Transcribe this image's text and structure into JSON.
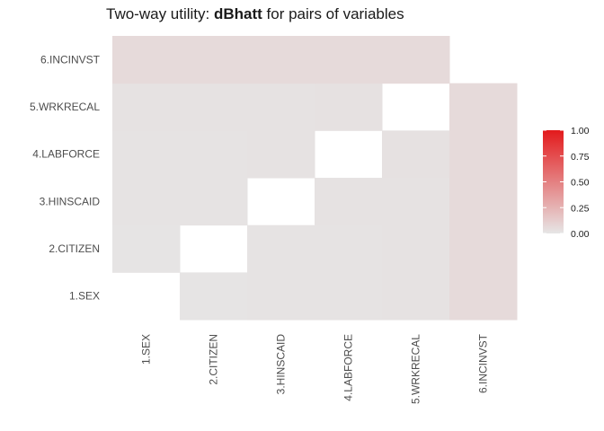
{
  "chart_data": {
    "type": "heatmap",
    "title_prefix": "Two-way utility: ",
    "title_metric": "dBhatt",
    "title_suffix": " for pairs of variables",
    "xlabel": "",
    "ylabel": "",
    "x_categories": [
      "1.SEX",
      "2.CITIZEN",
      "3.HINSCAID",
      "4.LABFORCE",
      "5.WRKRECAL",
      "6.INCINVST"
    ],
    "y_categories": [
      "1.SEX",
      "2.CITIZEN",
      "3.HINSCAID",
      "4.LABFORCE",
      "5.WRKRECAL",
      "6.INCINVST"
    ],
    "cells": [
      {
        "x": "2.CITIZEN",
        "y": "1.SEX",
        "value": 0.01
      },
      {
        "x": "3.HINSCAID",
        "y": "1.SEX",
        "value": 0.015
      },
      {
        "x": "4.LABFORCE",
        "y": "1.SEX",
        "value": 0.015
      },
      {
        "x": "5.WRKRECAL",
        "y": "1.SEX",
        "value": 0.02
      },
      {
        "x": "6.INCINVST",
        "y": "1.SEX",
        "value": 0.06
      },
      {
        "x": "1.SEX",
        "y": "2.CITIZEN",
        "value": 0.01
      },
      {
        "x": "3.HINSCAID",
        "y": "2.CITIZEN",
        "value": 0.015
      },
      {
        "x": "4.LABFORCE",
        "y": "2.CITIZEN",
        "value": 0.015
      },
      {
        "x": "5.WRKRECAL",
        "y": "2.CITIZEN",
        "value": 0.02
      },
      {
        "x": "6.INCINVST",
        "y": "2.CITIZEN",
        "value": 0.06
      },
      {
        "x": "1.SEX",
        "y": "3.HINSCAID",
        "value": 0.015
      },
      {
        "x": "2.CITIZEN",
        "y": "3.HINSCAID",
        "value": 0.015
      },
      {
        "x": "4.LABFORCE",
        "y": "3.HINSCAID",
        "value": 0.02
      },
      {
        "x": "5.WRKRECAL",
        "y": "3.HINSCAID",
        "value": 0.02
      },
      {
        "x": "6.INCINVST",
        "y": "3.HINSCAID",
        "value": 0.06
      },
      {
        "x": "1.SEX",
        "y": "4.LABFORCE",
        "value": 0.015
      },
      {
        "x": "2.CITIZEN",
        "y": "4.LABFORCE",
        "value": 0.015
      },
      {
        "x": "3.HINSCAID",
        "y": "4.LABFORCE",
        "value": 0.02
      },
      {
        "x": "5.WRKRECAL",
        "y": "4.LABFORCE",
        "value": 0.025
      },
      {
        "x": "6.INCINVST",
        "y": "4.LABFORCE",
        "value": 0.06
      },
      {
        "x": "1.SEX",
        "y": "5.WRKRECAL",
        "value": 0.02
      },
      {
        "x": "2.CITIZEN",
        "y": "5.WRKRECAL",
        "value": 0.02
      },
      {
        "x": "3.HINSCAID",
        "y": "5.WRKRECAL",
        "value": 0.02
      },
      {
        "x": "4.LABFORCE",
        "y": "5.WRKRECAL",
        "value": 0.025
      },
      {
        "x": "6.INCINVST",
        "y": "5.WRKRECAL",
        "value": 0.06
      },
      {
        "x": "1.SEX",
        "y": "6.INCINVST",
        "value": 0.06
      },
      {
        "x": "2.CITIZEN",
        "y": "6.INCINVST",
        "value": 0.06
      },
      {
        "x": "3.HINSCAID",
        "y": "6.INCINVST",
        "value": 0.06
      },
      {
        "x": "4.LABFORCE",
        "y": "6.INCINVST",
        "value": 0.06
      },
      {
        "x": "5.WRKRECAL",
        "y": "6.INCINVST",
        "value": 0.06
      }
    ],
    "color_scale": {
      "low_color": "#e6e6e6",
      "high_color": "#e31a1c",
      "missing_color": "#ffffff",
      "min": 0,
      "max": 1,
      "legend_ticks": [
        "0.00",
        "0.25",
        "0.50",
        "0.75",
        "1.00"
      ],
      "legend_placement": "right"
    },
    "grid": false
  }
}
